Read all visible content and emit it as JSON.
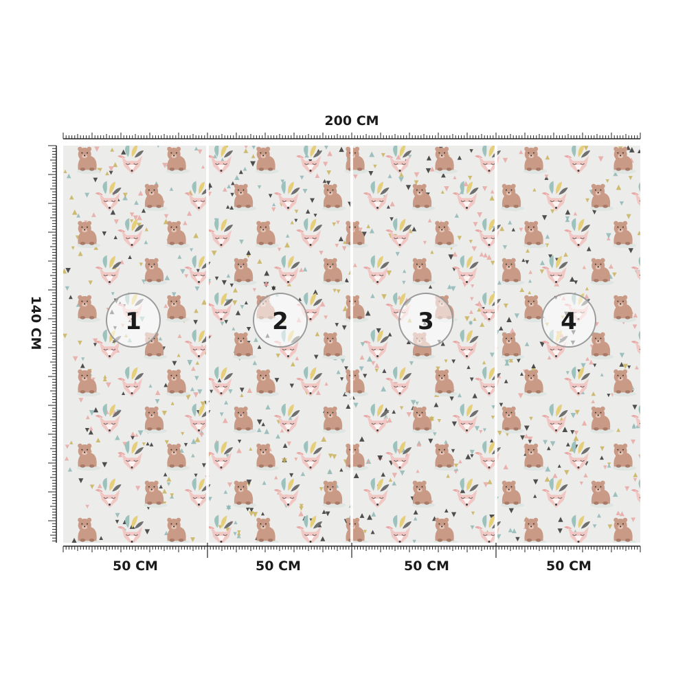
{
  "width_label": "200 CM",
  "height_label": "140 CM",
  "panels": [
    {
      "number": "1",
      "width_label": "50 CM"
    },
    {
      "number": "2",
      "width_label": "50 CM"
    },
    {
      "number": "3",
      "width_label": "50 CM"
    },
    {
      "number": "4",
      "width_label": "50 CM"
    }
  ],
  "colors": {
    "background": "#ececea",
    "bear": "#c99a86",
    "bear_dark": "#a87a68",
    "fox": "#f1c7c4",
    "fox_dark": "#e7a8a6",
    "leaf": "#9cc2bd",
    "feather_yellow": "#e5cf7a",
    "triangle_dark": "#333333",
    "triangle_gold": "#c9b35c",
    "triangle_teal": "#8fb9b6",
    "ruler": "#222222"
  },
  "pattern_icons": [
    "bear-icon",
    "fox-icon",
    "feather-icon",
    "triangle-confetti"
  ]
}
